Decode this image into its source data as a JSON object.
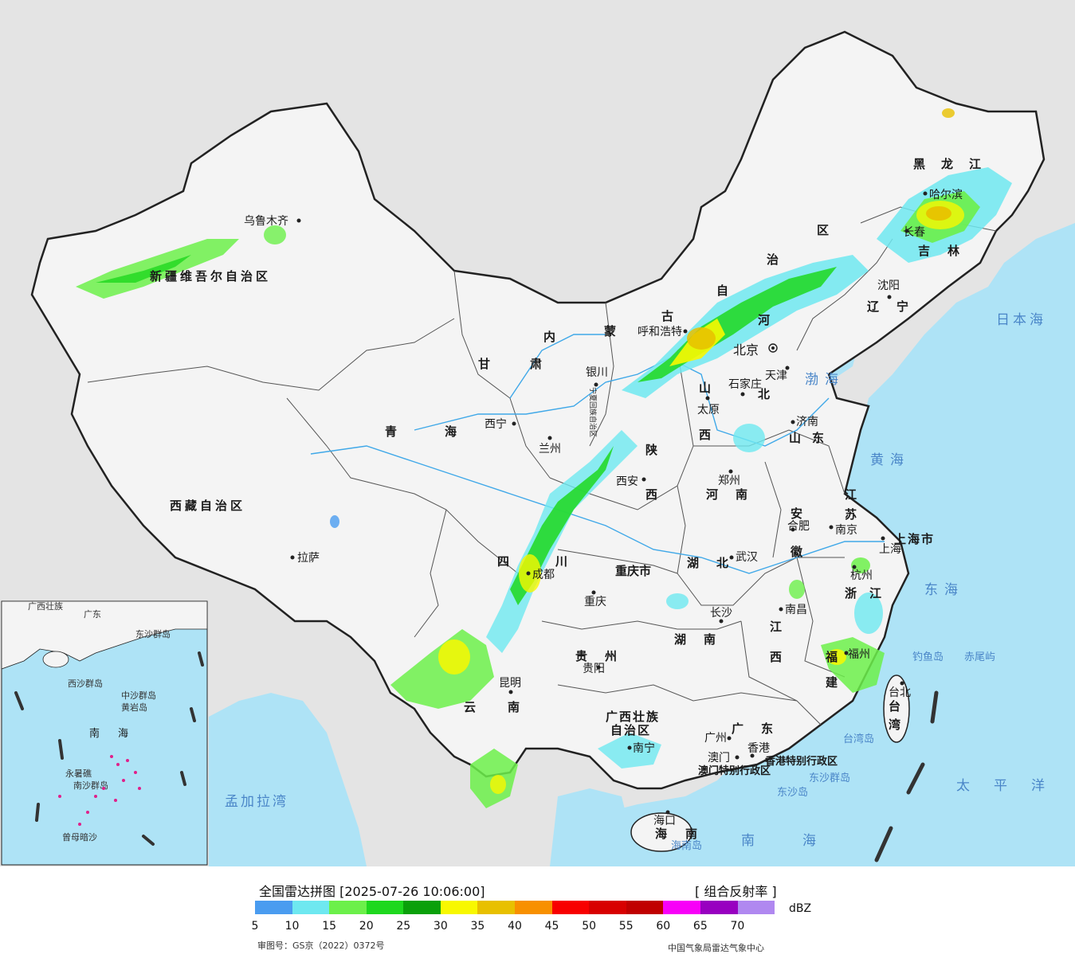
{
  "map": {
    "provinces": {
      "xinjiang": "新疆维吾尔自治区",
      "xizang": "西藏自治区",
      "qinghai": "青海",
      "gansu": "甘肃",
      "neimenggu_1": "内",
      "neimenggu_2": "蒙",
      "neimenggu_3": "古",
      "neimenggu_4": "自",
      "neimenggu_5": "治",
      "neimenggu_6": "区",
      "ningxia": "宁夏回族自治区",
      "shaanxi_1": "陕",
      "shaanxi_2": "西",
      "shanxi_1": "山",
      "shanxi_2": "西",
      "hebei_1": "河",
      "hebei_2": "北",
      "shandong": "山东",
      "henan": "河南",
      "sichuan_1": "四",
      "sichuan_2": "川",
      "chongqing": "重庆市",
      "hubei": "湖北",
      "hunan": "湖南",
      "guizhou": "贵州",
      "yunnan": "云南",
      "guangxi_1": "广西壮族",
      "guangxi_2": "自治区",
      "guangdong": "广东",
      "jiangxi_1": "江",
      "jiangxi_2": "西",
      "fujian_1": "福",
      "fujian_2": "建",
      "zhejiang": "浙江",
      "anhui_1": "安",
      "anhui_2": "徽",
      "jiangsu_1": "江",
      "jiangsu_2": "苏",
      "shanghai": "上海市",
      "heilongjiang": "黑龙江",
      "jilin": "吉林",
      "liaoning": "辽宁",
      "taiwan_1": "台",
      "taiwan_2": "湾",
      "hainan_1": "海",
      "hainan_2": "南",
      "hongkong": "香港特别行政区",
      "macau": "澳门特别行政区",
      "tianjin": "天津"
    },
    "cities": {
      "urumqi": "乌鲁木齐",
      "lhasa": "拉萨",
      "xining": "西宁",
      "lanzhou": "兰州",
      "yinchuan": "银川",
      "hohhot": "呼和浩特",
      "beijing": "北京",
      "shijiazhuang": "石家庄",
      "taiyuan": "太原",
      "jinan": "济南",
      "zhengzhou": "郑州",
      "xian": "西安",
      "chengdu": "成都",
      "chongqing": "重庆",
      "wuhan": "武汉",
      "changsha": "长沙",
      "guiyang": "贵阳",
      "kunming": "昆明",
      "nanning": "南宁",
      "guangzhou": "广州",
      "macau": "澳门",
      "hongkong": "香港",
      "nanchang": "南昌",
      "fuzhou": "福州",
      "hangzhou": "杭州",
      "hefei": "合肥",
      "nanjing": "南京",
      "shanghai": "上海",
      "harbin": "哈尔滨",
      "changchun": "长春",
      "shenyang": "沈阳",
      "taibei": "台北",
      "haikou": "海口",
      "tianjin": "天津"
    },
    "seas": {
      "bohai": "渤海",
      "huanghai": "黄海",
      "donghai": "东海",
      "nanhai": "南海",
      "japan_sea": "日本海",
      "pacific": "太平洋",
      "bengal": "孟加拉湾",
      "diaoyu": "钓鱼岛",
      "chiwei": "赤尾屿",
      "dongsha": "东沙群岛",
      "dongsha2": "东沙岛",
      "taiwan_island": "台湾岛",
      "hainan_island": "海南岛"
    },
    "inset": {
      "nanhai_1": "南",
      "nanhai_2": "海",
      "zhongsha": "中沙群岛",
      "huangyan": "黄岩岛",
      "nansha": "南沙群岛",
      "zengmu": "曾母暗沙",
      "xisha": "西沙群岛",
      "yongshu": "永暑礁",
      "dongsha": "东沙群岛",
      "guangdong": "广东",
      "guangxi": "广西壮族"
    },
    "colors": {
      "land": "#ececec",
      "land_china": "#f7f7f7",
      "water": "#aee3f6",
      "border": "#222222",
      "river": "#3fa8e8"
    }
  },
  "legend": {
    "title": "全国雷达拼图 [2025-07-26 10:06:00]",
    "product": "[ 组合反射率 ]",
    "unit": "dBZ",
    "ticks": [
      "5",
      "10",
      "15",
      "20",
      "25",
      "30",
      "35",
      "40",
      "45",
      "50",
      "55",
      "60",
      "65",
      "70"
    ],
    "colors": [
      "#4a9cf0",
      "#6ee8f0",
      "#6cf04a",
      "#1ed81e",
      "#0aa00a",
      "#f8f800",
      "#e8c000",
      "#f89000",
      "#f80000",
      "#d80000",
      "#c00000",
      "#f800f8",
      "#9800c0",
      "#b088f0"
    ],
    "approval": "审图号：GS京（2022）0372号",
    "source": "中国气象局雷达气象中心"
  }
}
